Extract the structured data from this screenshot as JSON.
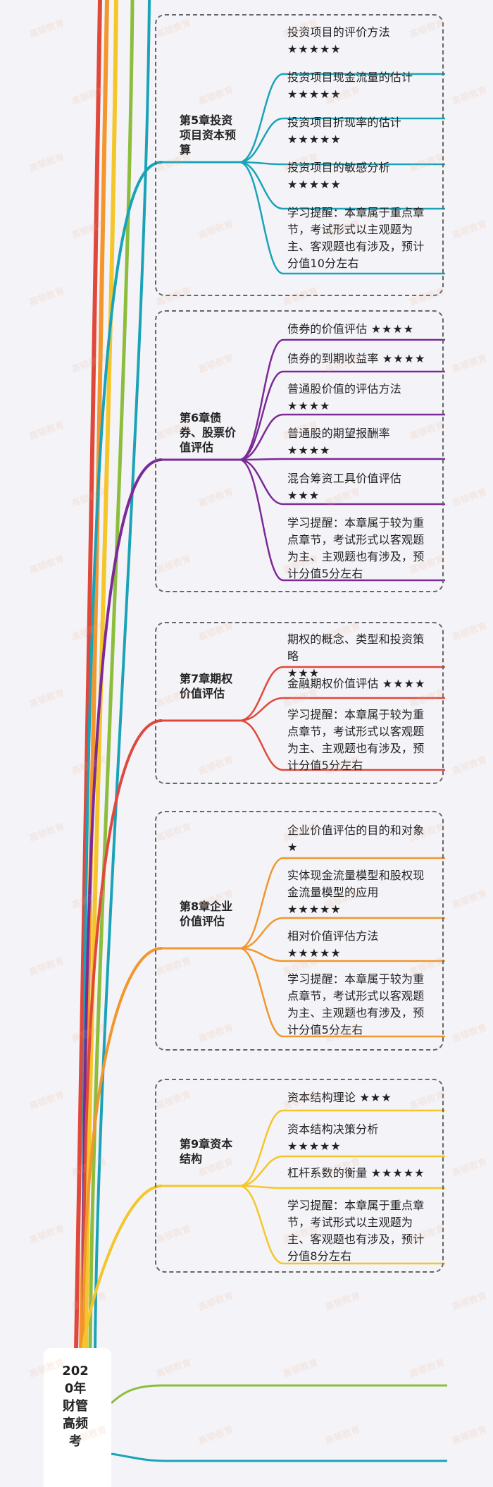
{
  "colors": {
    "ch5": "#1aa3b8",
    "ch6": "#7b2a96",
    "ch7": "#e0483c",
    "ch8": "#f2962d",
    "ch9": "#f5c62a",
    "green": "#8dbd3c",
    "bg": "#f4f4f8"
  },
  "root": {
    "title": "2020年财管高频考"
  },
  "watermark": "高顿教育",
  "chapters": [
    {
      "id": "ch5",
      "title": "第5章投资项目资本预算",
      "topics": [
        {
          "text": "投资项目的评价方法",
          "stars": "★★★★★"
        },
        {
          "text": "投资项目现金流量的估计",
          "stars": "★★★★★"
        },
        {
          "text": "投资项目折现率的估计",
          "stars": "★★★★★"
        },
        {
          "text": "投资项目的敏感分析",
          "stars": "★★★★★"
        },
        {
          "text": "学习提醒：本章属于重点章节，考试形式以主观题为主、客观题也有涉及，预计分值10分左右",
          "stars": ""
        }
      ]
    },
    {
      "id": "ch6",
      "title": "第6章债券、股票价值评估",
      "topics": [
        {
          "text": "债券的价值评估",
          "stars": "★★★★"
        },
        {
          "text": "债券的到期收益率",
          "stars": "★★★★"
        },
        {
          "text": "普通股价值的评估方法",
          "stars": "★★★★"
        },
        {
          "text": "普通股的期望报酬率",
          "stars": "★★★★"
        },
        {
          "text": "混合筹资工具价值评估",
          "stars": "★★★"
        },
        {
          "text": "学习提醒：本章属于较为重点章节，考试形式以客观题为主、主观题也有涉及，预计分值5分左右",
          "stars": ""
        }
      ]
    },
    {
      "id": "ch7",
      "title": "第7章期权价值评估",
      "topics": [
        {
          "text": "期权的概念、类型和投资策略",
          "stars": "★★★"
        },
        {
          "text": "金融期权价值评估",
          "stars": "★★★★"
        },
        {
          "text": "学习提醒：本章属于较为重点章节，考试形式以客观题为主、主观题也有涉及，预计分值5分左右",
          "stars": ""
        }
      ]
    },
    {
      "id": "ch8",
      "title": "第8章企业价值评估",
      "topics": [
        {
          "text": "企业价值评估的目的和对象",
          "stars": "★"
        },
        {
          "text": "实体现金流量模型和股权现金流量模型的应用",
          "stars": "★★★★★"
        },
        {
          "text": "相对价值评估方法",
          "stars": "★★★★★"
        },
        {
          "text": "学习提醒：本章属于较为重点章节，考试形式以客观题为主、主观题也有涉及，预计分值5分左右",
          "stars": ""
        }
      ]
    },
    {
      "id": "ch9",
      "title": "第9章资本结构",
      "topics": [
        {
          "text": "资本结构理论",
          "stars": "★★★"
        },
        {
          "text": "资本结构决策分析",
          "stars": "★★★★★"
        },
        {
          "text": "杠杆系数的衡量",
          "stars": "★★★★★"
        },
        {
          "text": "学习提醒：本章属于重点章节，考试形式以主观题为主、客观题也有涉及，预计分值8分左右",
          "stars": ""
        }
      ]
    }
  ]
}
